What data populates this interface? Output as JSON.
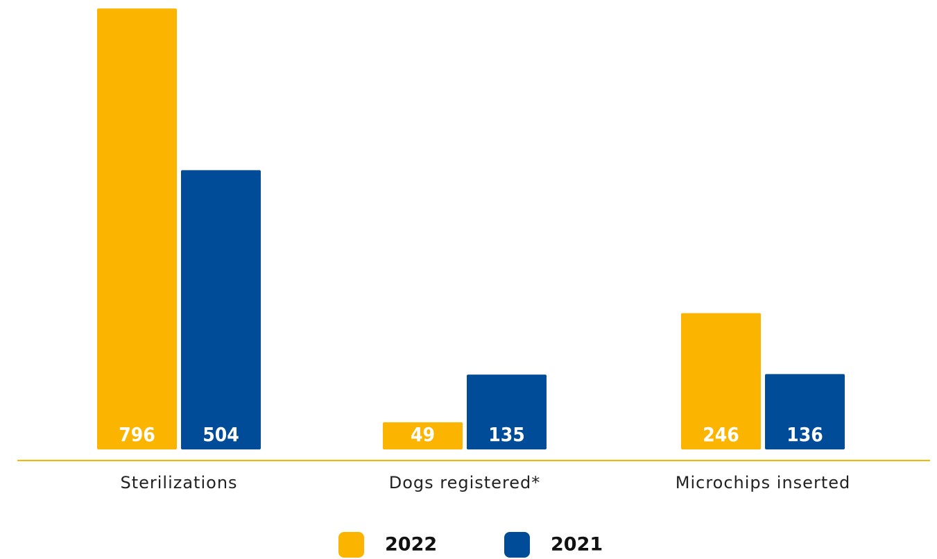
{
  "chart_data": {
    "type": "bar",
    "categories": [
      "Sterilizations",
      "Dogs registered*",
      "Microchips inserted"
    ],
    "series": [
      {
        "name": "2022",
        "color": "#fbb400",
        "values": [
          796,
          49,
          246
        ]
      },
      {
        "name": "2021",
        "color": "#004c99",
        "values": [
          504,
          135,
          136
        ]
      }
    ],
    "ylim": [
      0,
      800
    ],
    "legend": "bottom"
  }
}
